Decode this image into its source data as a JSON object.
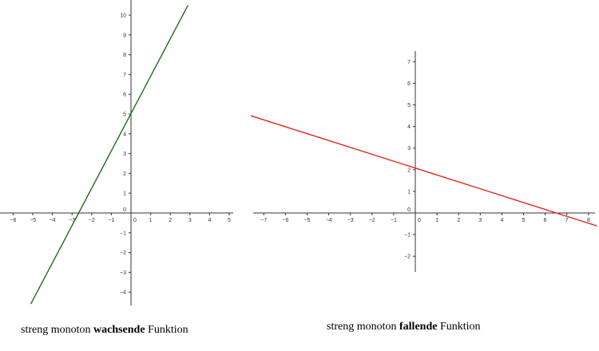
{
  "chart_data": [
    {
      "type": "line",
      "caption": {
        "pre": "streng monoton",
        "bold": "wachsende",
        "post": "Funktion"
      },
      "x_ticks": [
        -6,
        -5,
        -4,
        -3,
        -2,
        -1,
        0,
        1,
        2,
        3,
        4,
        5
      ],
      "y_ticks": [
        -4,
        -3,
        -2,
        -1,
        0,
        1,
        2,
        3,
        4,
        5,
        6,
        7,
        8,
        9,
        10
      ],
      "xlim": [
        -6.6,
        5.3
      ],
      "ylim": [
        -4.9,
        10.5
      ],
      "series": [
        {
          "color": "#1e6b1e",
          "points": [
            [
              -5.1,
              -4.6
            ],
            [
              2.9,
              10.5
            ]
          ]
        }
      ]
    },
    {
      "type": "line",
      "caption": {
        "pre": "streng monoton",
        "bold": "fallende",
        "post": "Funktion"
      },
      "x_ticks": [
        -7,
        -6,
        -5,
        -4,
        -3,
        -2,
        -1,
        0,
        1,
        2,
        3,
        4,
        5,
        6,
        7,
        8
      ],
      "y_ticks": [
        -2,
        -1,
        0,
        1,
        2,
        3,
        4,
        5,
        6,
        7
      ],
      "xlim": [
        -7.7,
        8.4
      ],
      "ylim": [
        -2.8,
        7.6
      ],
      "series": [
        {
          "color": "#e0261b",
          "points": [
            [
              -7.6,
              4.5
            ],
            [
              8.4,
              -0.6
            ]
          ]
        }
      ]
    }
  ]
}
